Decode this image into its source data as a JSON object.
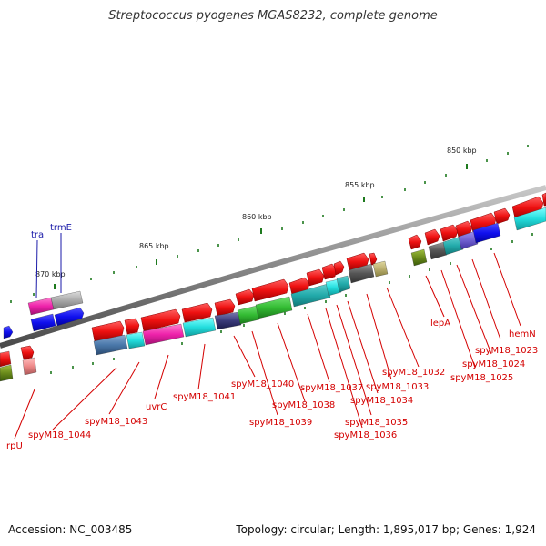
{
  "header": {
    "title": "Streptococcus pyogenes MGAS8232, complete genome"
  },
  "footer": {
    "accession": "Accession: NC_003485",
    "stats": "Topology: circular; Length: 1,895,017 bp; Genes: 1,924"
  },
  "scale_labels": [
    "850 kbp",
    "855 kbp",
    "860 kbp",
    "865 kbp",
    "870 kbp"
  ],
  "gene_labels": {
    "rpU": "rpU",
    "spyM18_1044": "spyM18_1044",
    "spyM18_1043": "spyM18_1043",
    "uvrC": "uvrC",
    "spyM18_1041": "spyM18_1041",
    "spyM18_1040": "spyM18_1040",
    "spyM18_1039": "spyM18_1039",
    "spyM18_1038": "spyM18_1038",
    "spyM18_1037": "spyM18_1037",
    "spyM18_1036": "spyM18_1036",
    "spyM18_1035": "spyM18_1035",
    "spyM18_1034": "spyM18_1034",
    "spyM18_1033": "spyM18_1033",
    "spyM18_1032": "spyM18_1032",
    "lepA": "lepA",
    "spyM18_1025": "spyM18_1025",
    "spyM18_1024": "spyM18_1024",
    "spyM18_1023": "spyM18_1023",
    "hemN": "hemN",
    "tra": "tra",
    "trmE": "trmE"
  },
  "colors": {
    "backbone": "#888888",
    "gene_label": "#d40000",
    "rna_label": "#1a1aa8",
    "cds_red": "#ee1111",
    "tick": "#1e7a1e"
  }
}
